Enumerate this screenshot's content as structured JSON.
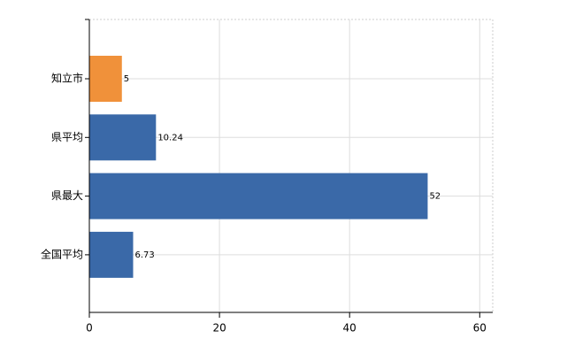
{
  "chart_data": {
    "type": "bar",
    "orientation": "horizontal",
    "categories": [
      "知立市",
      "県平均",
      "県最大",
      "全国平均"
    ],
    "values": [
      5,
      10.24,
      52,
      6.73
    ],
    "colors": [
      "#f0913a",
      "#3a69a8",
      "#3a69a8",
      "#3a69a8"
    ],
    "xlim": [
      0,
      62
    ],
    "xticks": [
      0,
      20,
      40,
      60
    ],
    "grid": true
  }
}
